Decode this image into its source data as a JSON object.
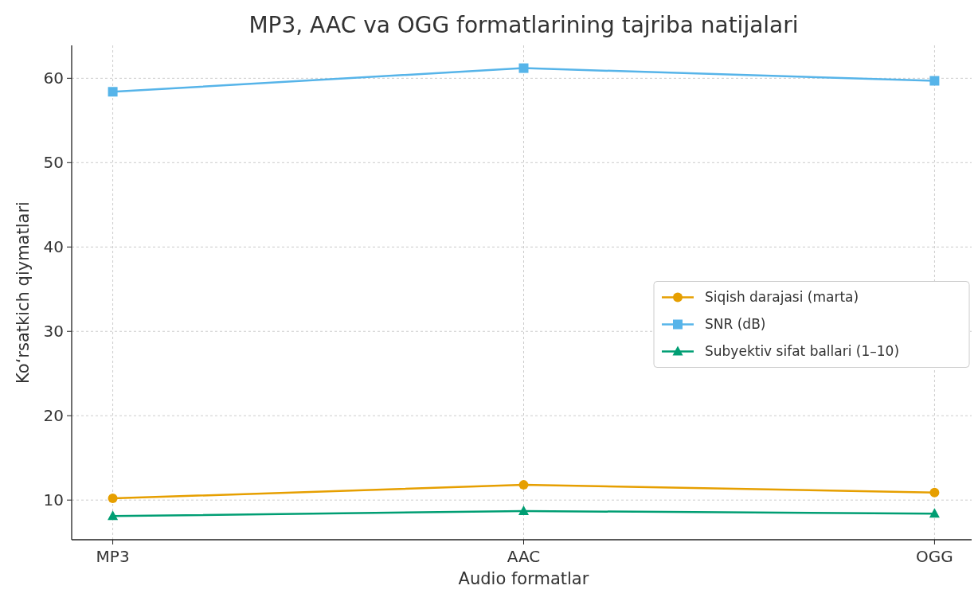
{
  "chart_data": {
    "type": "line",
    "title": "MP3, AAC va OGG formatlarining tajriba natijalari",
    "xlabel": "Audio formatlar",
    "ylabel": "Ko‘rsatkich qiymatlari",
    "categories": [
      "MP3",
      "AAC",
      "OGG"
    ],
    "series": [
      {
        "name": "Siqish darajasi (marta)",
        "color": "#e69f00",
        "values": [
          10.2,
          11.8,
          10.9
        ],
        "marker": "circle"
      },
      {
        "name": "SNR (dB)",
        "color": "#56b4e9",
        "values": [
          58.4,
          61.2,
          59.7
        ],
        "marker": "square"
      },
      {
        "name": "Subyektiv sifat ballari (1–10)",
        "color": "#009e73",
        "values": [
          8.1,
          8.7,
          8.4
        ],
        "marker": "triangle"
      }
    ],
    "ylim": [
      5.3,
      63.9
    ],
    "yticks": [
      10,
      20,
      30,
      40,
      50,
      60
    ],
    "grid": true,
    "legend": "right",
    "line_style": "solid"
  }
}
